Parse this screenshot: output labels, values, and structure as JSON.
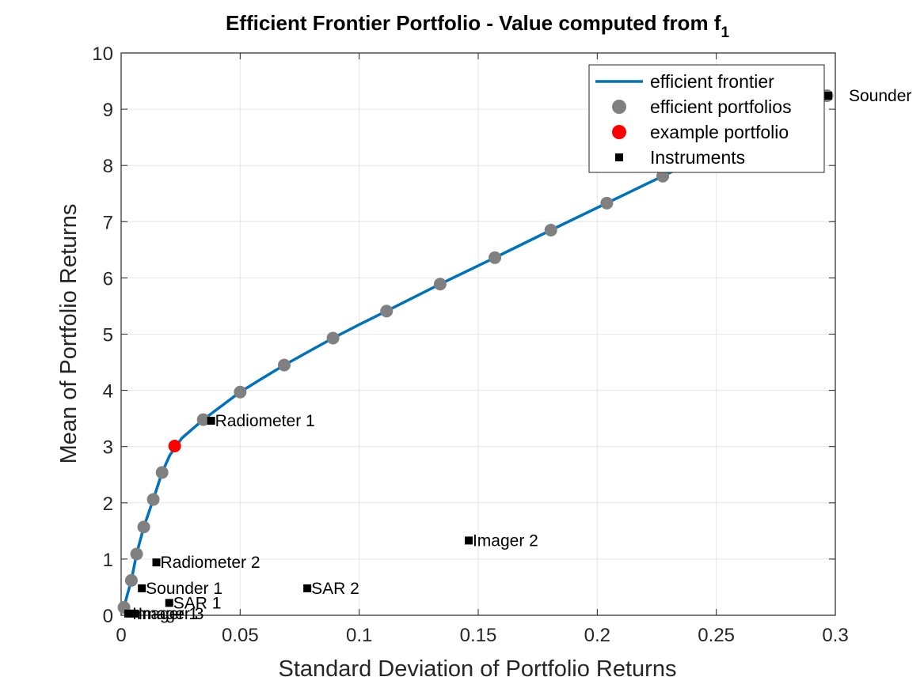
{
  "chart_data": {
    "type": "scatter",
    "title_main": "Efficient Frontier Portfolio - Value computed from f",
    "title_subscript": "1",
    "xlabel": "Standard Deviation of Portfolio Returns",
    "ylabel": "Mean of Portfolio Returns",
    "xlim": [
      0,
      0.3
    ],
    "ylim": [
      0,
      10
    ],
    "xticks": [
      0,
      0.05,
      0.1,
      0.15,
      0.2,
      0.25,
      0.3
    ],
    "xtick_labels": [
      "0",
      "0.05",
      "0.1",
      "0.15",
      "0.2",
      "0.25",
      "0.3"
    ],
    "yticks": [
      0,
      1,
      2,
      3,
      4,
      5,
      6,
      7,
      8,
      9,
      10
    ],
    "ytick_labels": [
      "0",
      "1",
      "2",
      "3",
      "4",
      "5",
      "6",
      "7",
      "8",
      "9",
      "10"
    ],
    "grid": true,
    "legend_position": "top-right",
    "series": [
      {
        "name": "efficient frontier",
        "kind": "line",
        "color": "#0072BD",
        "x": [
          0.0012,
          0.0025,
          0.0043,
          0.0065,
          0.0095,
          0.0135,
          0.0172,
          0.0205,
          0.0255,
          0.0345,
          0.05,
          0.058,
          0.0685,
          0.089,
          0.1,
          0.1115,
          0.134,
          0.157,
          0.1805,
          0.204,
          0.2275,
          0.252,
          0.2965
        ],
        "y": [
          0.14,
          0.35,
          0.62,
          1.09,
          1.57,
          2.06,
          2.54,
          2.85,
          3.15,
          3.48,
          3.97,
          4.18,
          4.45,
          4.93,
          5.17,
          5.41,
          5.89,
          6.36,
          6.85,
          7.33,
          7.81,
          8.3,
          9.24
        ]
      },
      {
        "name": "efficient portfolios",
        "kind": "markers",
        "color": "#808080",
        "x": [
          0.0012,
          0.0043,
          0.0065,
          0.0095,
          0.0135,
          0.0172,
          0.0345,
          0.05,
          0.0685,
          0.089,
          0.1115,
          0.134,
          0.157,
          0.1805,
          0.204,
          0.2275,
          0.2965
        ],
        "y": [
          0.14,
          0.62,
          1.09,
          1.57,
          2.06,
          2.54,
          3.48,
          3.97,
          4.45,
          4.93,
          5.41,
          5.89,
          6.36,
          6.85,
          7.33,
          7.81,
          9.24
        ]
      },
      {
        "name": "example portfolio",
        "kind": "markers",
        "color": "#FF0000",
        "x": [
          0.0225
        ],
        "y": [
          3.01
        ]
      },
      {
        "name": "Instruments",
        "kind": "markers",
        "color": "#000000",
        "points": [
          {
            "label": "Sounder",
            "x": 0.297,
            "y": 9.24
          },
          {
            "label": "Radiometer 1",
            "x": 0.0378,
            "y": 3.46
          },
          {
            "label": "Imager 2",
            "x": 0.146,
            "y": 1.33
          },
          {
            "label": "Radiometer 2",
            "x": 0.0148,
            "y": 0.94
          },
          {
            "label": "Sounder 1",
            "x": 0.0087,
            "y": 0.48
          },
          {
            "label": "SAR 2",
            "x": 0.0782,
            "y": 0.48
          },
          {
            "label": "SAR 1",
            "x": 0.0202,
            "y": 0.22
          },
          {
            "label": "Imager 1",
            "x": 0.003,
            "y": 0.03
          },
          {
            "label": "Imager 3",
            "x": 0.0055,
            "y": 0.03
          }
        ]
      }
    ]
  }
}
